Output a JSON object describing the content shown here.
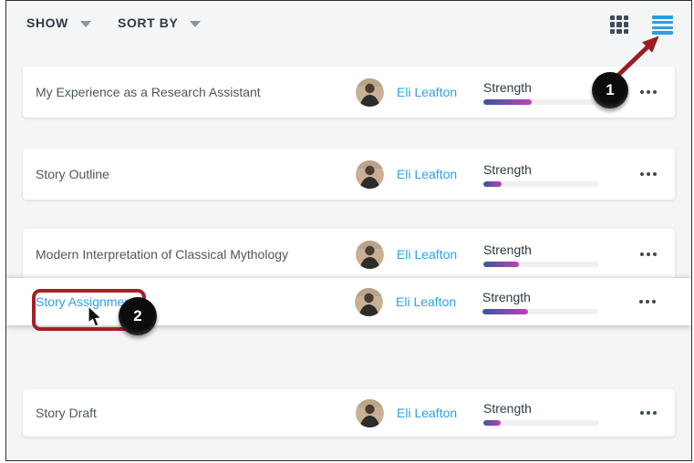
{
  "toolbar": {
    "show": {
      "label": "SHOW"
    },
    "sort_by": {
      "label": "SORT BY"
    }
  },
  "view_controls": {
    "grid_view": {
      "icon": "grid-icon",
      "active": false
    },
    "list_view": {
      "icon": "list-icon",
      "active": true
    }
  },
  "rows": [
    {
      "title": "My Experience as a Research Assistant",
      "author": "Eli Leafton",
      "metric_label": "Strength",
      "strength_percent": 42,
      "highlighted": false
    },
    {
      "title": "Story Outline",
      "author": "Eli Leafton",
      "metric_label": "Strength",
      "strength_percent": 16,
      "highlighted": false
    },
    {
      "title": "Modern Interpretation of Classical Mythology",
      "author": "Eli Leafton",
      "metric_label": "Strength",
      "strength_percent": 31,
      "highlighted": false
    },
    {
      "title": "Story Assignment",
      "author": "Eli Leafton",
      "metric_label": "Strength",
      "strength_percent": 39,
      "highlighted": true
    },
    {
      "title": "Story Draft",
      "author": "Eli Leafton",
      "metric_label": "Strength",
      "strength_percent": 15,
      "highlighted": false
    }
  ],
  "annotations": {
    "callout_1": {
      "label": "1",
      "points_to": "list-view-button"
    },
    "callout_2": {
      "label": "2",
      "points_to": "story-assignment-link"
    }
  },
  "colors": {
    "link_blue": "#2BA2E8",
    "icon_grid": "#3E4C59",
    "icon_list_blue": "#2A9FE5",
    "heading": "#2D3B45",
    "title_gray": "#4D575F",
    "annotation_red": "#A32123",
    "bar_start": "#33589E",
    "bar_end": "#C240B7",
    "page_bg": "#F4F5F6",
    "card_bg": "#FFFFFF",
    "track": "#F0F0F2"
  }
}
